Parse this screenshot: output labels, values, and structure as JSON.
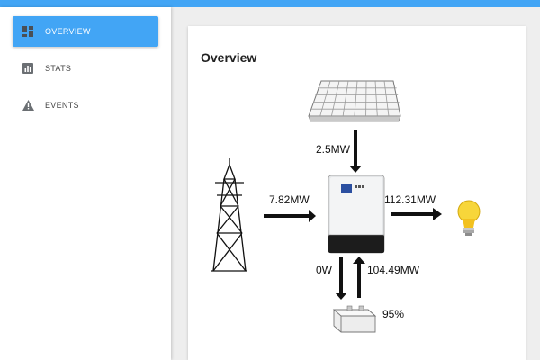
{
  "nav": {
    "items": [
      {
        "label": "OVERVIEW",
        "icon": "dashboard-icon",
        "active": true
      },
      {
        "label": "STATS",
        "icon": "bar-chart-icon",
        "active": false
      },
      {
        "label": "EVENTS",
        "icon": "warning-icon",
        "active": false
      }
    ]
  },
  "overview": {
    "title": "Overview",
    "solar_power": "2.5MW",
    "grid_power": "7.82MW",
    "load_power": "112.31MW",
    "battery_charge_power": "0W",
    "battery_discharge_power": "104.49MW",
    "battery_level": "95%"
  },
  "colors": {
    "accent": "#42a5f5"
  }
}
